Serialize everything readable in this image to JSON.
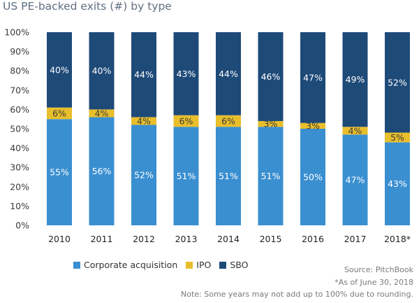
{
  "chart_data": {
    "type": "bar",
    "stacked": true,
    "title": "US PE-backed exits (#) by type",
    "categories": [
      "2010",
      "2011",
      "2012",
      "2013",
      "2014",
      "2015",
      "2016",
      "2017",
      "2018*"
    ],
    "series": [
      {
        "name": "Corporate acquisition",
        "color": "#3a8fd0",
        "values": [
          55,
          56,
          52,
          51,
          51,
          51,
          50,
          47,
          43
        ],
        "labels": [
          "55%",
          "56%",
          "52%",
          "51%",
          "51%",
          "51%",
          "50%",
          "47%",
          "43%"
        ]
      },
      {
        "name": "IPO",
        "color": "#e8be2b",
        "values": [
          6,
          4,
          4,
          6,
          6,
          3,
          3,
          4,
          5
        ],
        "labels": [
          "6%",
          "4%",
          "4%",
          "6%",
          "6%",
          "3%",
          "3%",
          "4%",
          "5%"
        ]
      },
      {
        "name": "SBO",
        "color": "#1e4a78",
        "values": [
          40,
          40,
          44,
          43,
          44,
          46,
          47,
          49,
          52
        ],
        "labels": [
          "40%",
          "40%",
          "44%",
          "43%",
          "44%",
          "46%",
          "47%",
          "49%",
          "52%"
        ]
      }
    ],
    "yticks": [
      "0%",
      "10%",
      "20%",
      "30%",
      "40%",
      "50%",
      "60%",
      "70%",
      "80%",
      "90%",
      "100%"
    ],
    "ylim": [
      0,
      100
    ],
    "grid": false,
    "legend_position": "bottom"
  },
  "source": "Source: PitchBook",
  "footnote_date": "*As of June 30, 2018",
  "footnote_note": "Note: Some years may not add up to 100% due to rounding."
}
